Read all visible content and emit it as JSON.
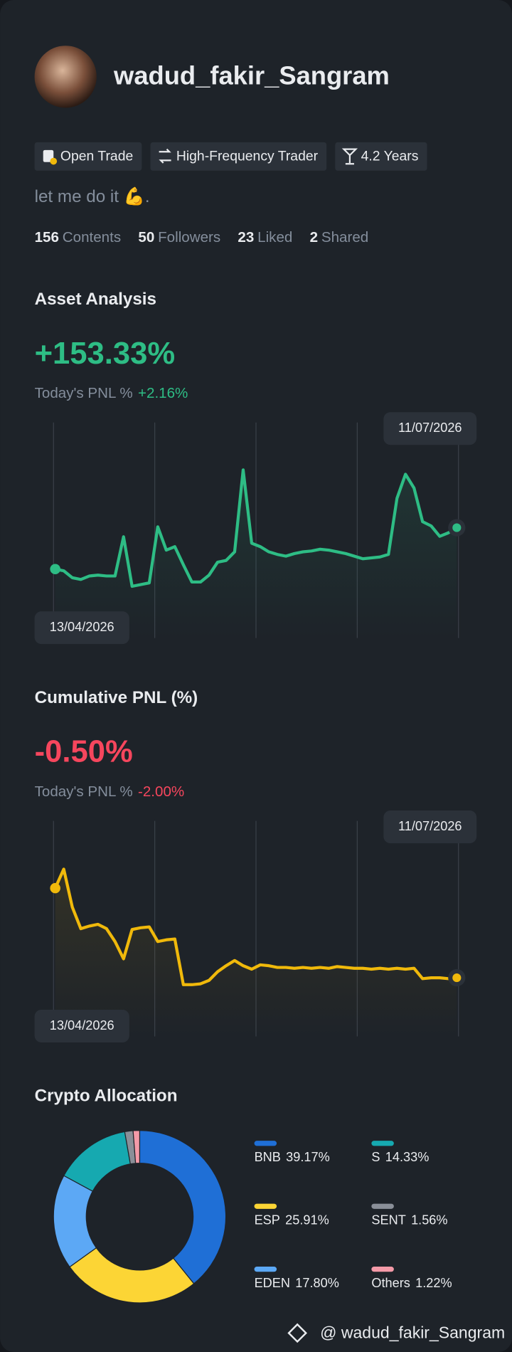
{
  "profile": {
    "username": "wadud_fakir_Sangram",
    "tags": [
      "Open Trade",
      "High-Frequency Trader",
      "4.2 Years"
    ],
    "bio": "let me do it 💪.",
    "stats": [
      {
        "value": 156,
        "label": "Contents"
      },
      {
        "value": 50,
        "label": "Followers"
      },
      {
        "value": 23,
        "label": "Liked"
      },
      {
        "value": 2,
        "label": "Shared"
      }
    ]
  },
  "chart_data": [
    {
      "type": "line",
      "title": "Asset Analysis",
      "headline": "+153.33%",
      "pnl_label": "Today's PNL %",
      "pnl_value": "+2.16%",
      "color": "#2ebd85",
      "start_date": "13/04/2026",
      "end_date": "11/07/2026",
      "ylim": [
        0,
        100
      ],
      "values": [
        32,
        31.2,
        28,
        27.2,
        28.8,
        29.2,
        28.8,
        28.8,
        47,
        24,
        24.8,
        25.6,
        51.6,
        40.8,
        42.4,
        34,
        26,
        26,
        29.2,
        35.2,
        36,
        40,
        78,
        44,
        42.4,
        40,
        38.8,
        38,
        39.2,
        40,
        40.4,
        41.2,
        40.8,
        40,
        39.2,
        38,
        36.8,
        37.2,
        37.6,
        38.8,
        64.8,
        76,
        69.6,
        54,
        52,
        47.2,
        48.8,
        51.2
      ]
    },
    {
      "type": "line",
      "title": "Cumulative PNL (%)",
      "headline": "-0.50%",
      "pnl_label": "Today's PNL %",
      "pnl_value": "-2.00%",
      "color": "#f0b90b",
      "start_date": "13/04/2026",
      "end_date": "11/07/2026",
      "ylim": [
        0,
        100
      ],
      "values": [
        68.8,
        77.6,
        60,
        50,
        51.2,
        52,
        50,
        44,
        36,
        49.6,
        50.4,
        50.8,
        44,
        44.8,
        45.2,
        24,
        24,
        24.4,
        26,
        30,
        32.8,
        35.2,
        32.8,
        31.2,
        33.2,
        32.8,
        32,
        32,
        31.6,
        32,
        31.6,
        32,
        31.6,
        32.4,
        32,
        31.6,
        31.6,
        31.2,
        31.6,
        31.2,
        31.6,
        31.2,
        31.6,
        26.8,
        27.2,
        27.2,
        26.8,
        27.2
      ]
    },
    {
      "type": "donut",
      "title": "Crypto Allocation",
      "categories": [
        "BNB",
        "ESP",
        "EDEN",
        "S",
        "SENT",
        "Others"
      ],
      "values": [
        39.17,
        25.91,
        17.8,
        14.33,
        1.56,
        1.22
      ],
      "value_labels": [
        "39.17%",
        "25.91%",
        "17.80%",
        "14.33%",
        "1.56%",
        "1.22%"
      ],
      "colors": [
        "#1f6fd6",
        "#fcd535",
        "#5ca8f5",
        "#16a9b0",
        "#8a8f98",
        "#f49aa8"
      ]
    }
  ],
  "footer": {
    "handle": "@ wadud_fakir_Sangram"
  }
}
